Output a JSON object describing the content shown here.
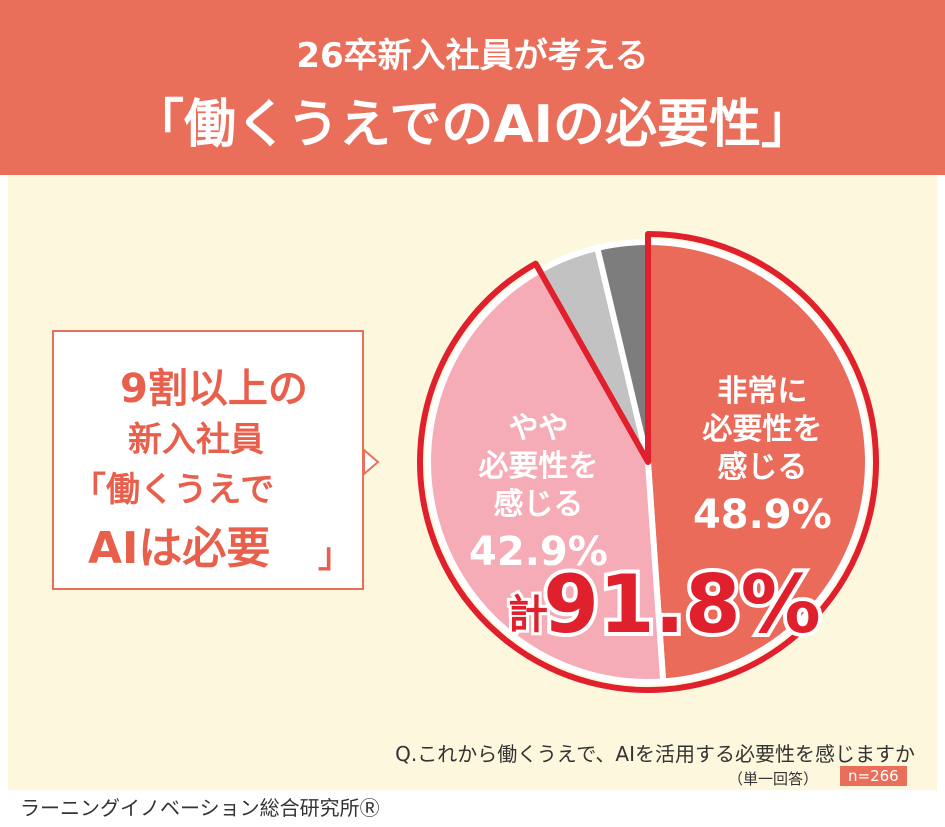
{
  "header": {
    "title_line1": "26卒新入社員が考える",
    "title_line2": "「働くうえでのAIの必要性」"
  },
  "callout": {
    "lines": [
      "9割以上の",
      "新入社員",
      "「働くうえで",
      "AIは必要",
      "」"
    ]
  },
  "chart_data": {
    "type": "pie",
    "categories": [
      "非常に\n必要性を\n感じる",
      "やや\n必要性を\n感じる",
      null,
      null
    ],
    "values": [
      48.9,
      42.9,
      4.5,
      3.7
    ],
    "value_labels": [
      "48.9%",
      "42.9%",
      null,
      null
    ],
    "colors": [
      "#ea6b5a",
      "#f6acb7",
      "#c2c2c2",
      "#7d7d7d"
    ],
    "total": {
      "label": "計",
      "value": 91.8,
      "value_label": "91.8%",
      "color": "#e0202c"
    }
  },
  "question": "Q.これから働くうえで、AIを活用する必要性を感じますか",
  "answer_type": "（単一回答）",
  "sample": "n=266",
  "footer": "ラーニングイノベーション総合研究所Ⓡ"
}
